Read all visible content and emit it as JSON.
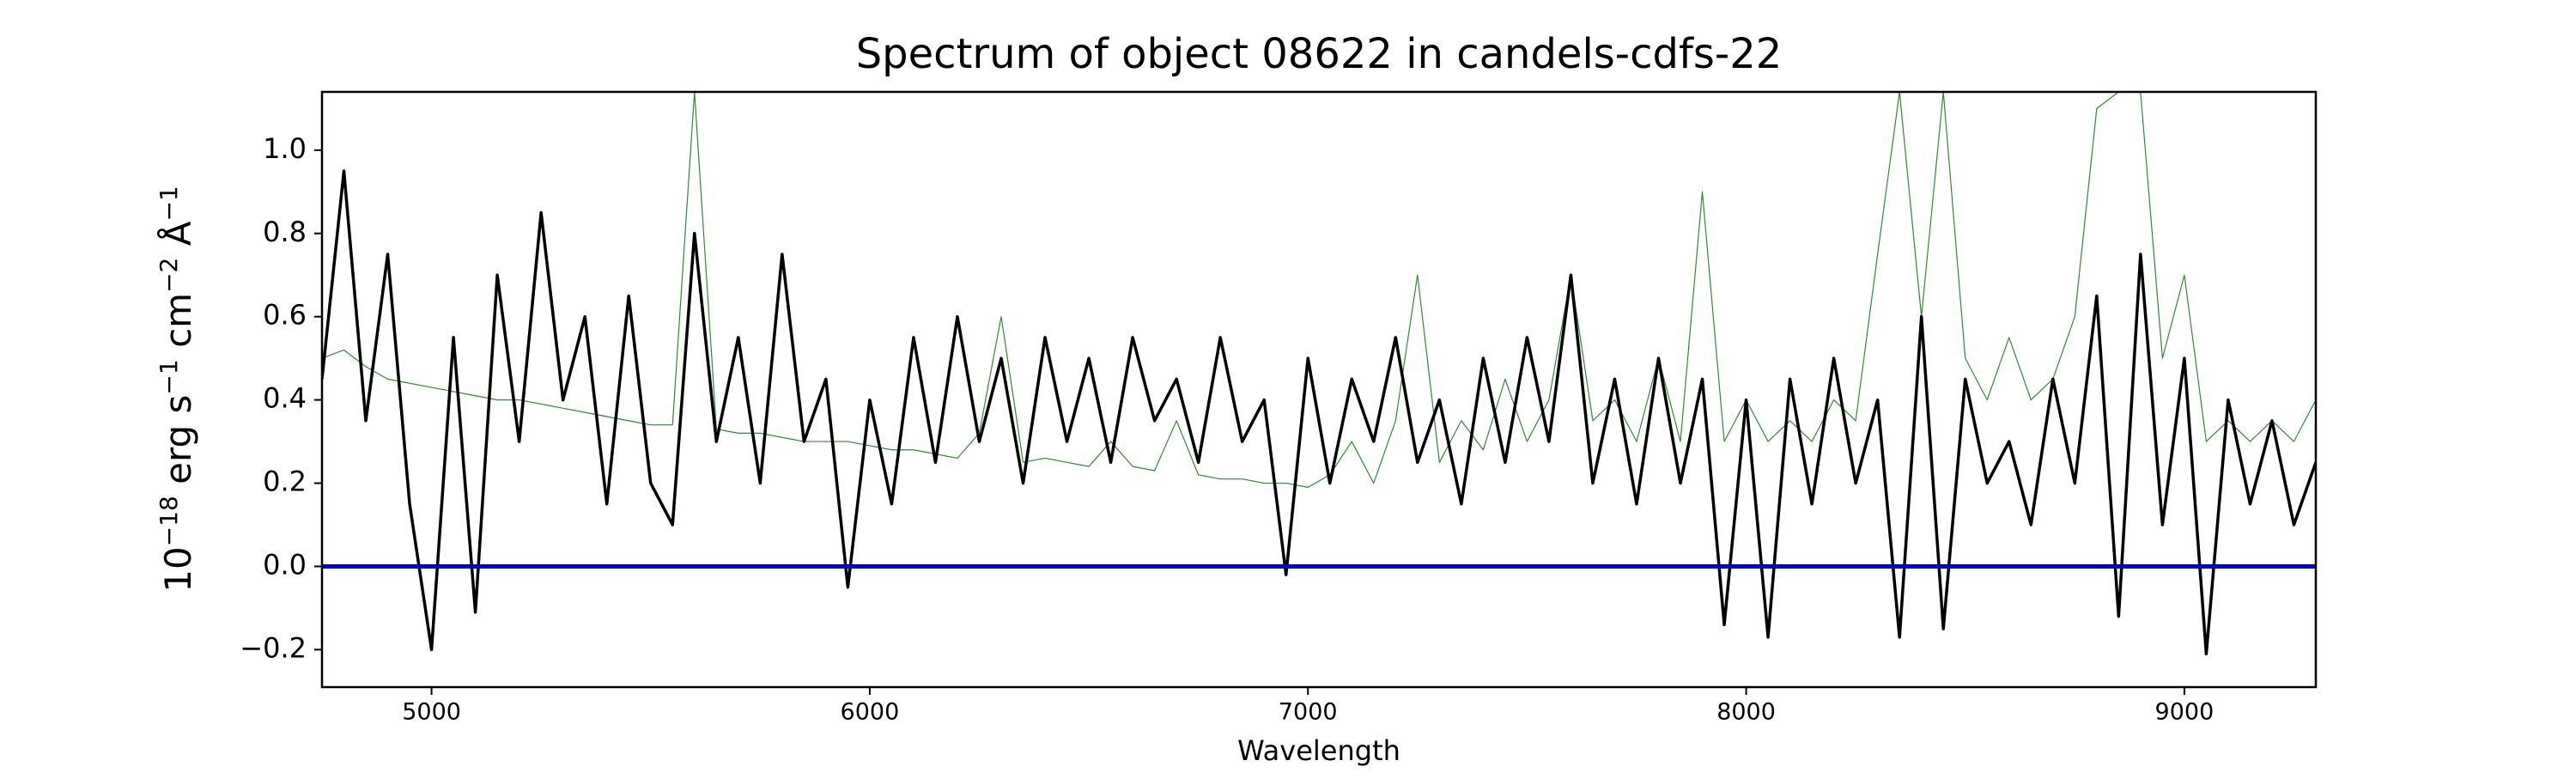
{
  "chart_data": {
    "type": "line",
    "title": "Spectrum of object 08622 in candels-cdfs-22",
    "xlabel": "Wavelength",
    "ylabel_parts": [
      "10",
      "−18",
      " erg s",
      "−1",
      " cm",
      "−2",
      " Å",
      "−1"
    ],
    "x": [
      4750,
      4800,
      4850,
      4900,
      4950,
      5000,
      5050,
      5100,
      5150,
      5200,
      5250,
      5300,
      5350,
      5400,
      5450,
      5500,
      5550,
      5600,
      5650,
      5700,
      5750,
      5800,
      5850,
      5900,
      5950,
      6000,
      6050,
      6100,
      6150,
      6200,
      6250,
      6300,
      6350,
      6400,
      6450,
      6500,
      6550,
      6600,
      6650,
      6700,
      6750,
      6800,
      6850,
      6900,
      6950,
      7000,
      7050,
      7100,
      7150,
      7200,
      7250,
      7300,
      7350,
      7400,
      7450,
      7500,
      7550,
      7600,
      7650,
      7700,
      7750,
      7800,
      7850,
      7900,
      7950,
      8000,
      8050,
      8100,
      8150,
      8200,
      8250,
      8300,
      8350,
      8400,
      8450,
      8500,
      8550,
      8600,
      8650,
      8700,
      8750,
      8800,
      8850,
      8900,
      8950,
      9000,
      9050,
      9100,
      9150,
      9200,
      9250,
      9300
    ],
    "series": [
      {
        "color": "#2e8b2e",
        "width": 1.2,
        "values": [
          0.5,
          0.52,
          0.48,
          0.45,
          0.44,
          0.43,
          0.42,
          0.41,
          0.4,
          0.4,
          0.39,
          0.38,
          0.37,
          0.36,
          0.35,
          0.34,
          0.34,
          1.14,
          0.33,
          0.32,
          0.32,
          0.31,
          0.3,
          0.3,
          0.3,
          0.29,
          0.28,
          0.28,
          0.27,
          0.26,
          0.32,
          0.6,
          0.25,
          0.26,
          0.25,
          0.24,
          0.3,
          0.24,
          0.23,
          0.35,
          0.22,
          0.21,
          0.21,
          0.2,
          0.2,
          0.19,
          0.22,
          0.3,
          0.2,
          0.35,
          0.7,
          0.25,
          0.35,
          0.28,
          0.45,
          0.3,
          0.4,
          0.7,
          0.35,
          0.4,
          0.3,
          0.5,
          0.3,
          0.9,
          0.3,
          0.4,
          0.3,
          0.35,
          0.3,
          0.4,
          0.35,
          0.75,
          1.14,
          0.6,
          1.14,
          0.5,
          0.4,
          0.55,
          0.4,
          0.45,
          0.6,
          1.1,
          1.14,
          1.14,
          0.5,
          0.7,
          0.3,
          0.35,
          0.3,
          0.35,
          0.3,
          0.4
        ]
      },
      {
        "color": "#000000",
        "width": 3.5,
        "values": [
          0.45,
          0.95,
          0.35,
          0.75,
          0.15,
          -0.2,
          0.55,
          -0.11,
          0.7,
          0.3,
          0.85,
          0.4,
          0.6,
          0.15,
          0.65,
          0.2,
          0.1,
          0.8,
          0.3,
          0.55,
          0.2,
          0.75,
          0.3,
          0.45,
          -0.05,
          0.4,
          0.15,
          0.55,
          0.25,
          0.6,
          0.3,
          0.5,
          0.2,
          0.55,
          0.3,
          0.5,
          0.25,
          0.55,
          0.35,
          0.45,
          0.25,
          0.55,
          0.3,
          0.4,
          -0.02,
          0.5,
          0.2,
          0.45,
          0.3,
          0.55,
          0.25,
          0.4,
          0.15,
          0.5,
          0.25,
          0.55,
          0.3,
          0.7,
          0.2,
          0.45,
          0.15,
          0.5,
          0.2,
          0.45,
          -0.14,
          0.4,
          -0.17,
          0.45,
          0.15,
          0.5,
          0.2,
          0.4,
          -0.17,
          0.6,
          -0.15,
          0.45,
          0.2,
          0.3,
          0.1,
          0.45,
          0.2,
          0.65,
          -0.12,
          0.75,
          0.1,
          0.5,
          -0.21,
          0.4,
          0.15,
          0.35,
          0.1,
          0.25
        ]
      }
    ],
    "hline": {
      "value": 0,
      "color": "#0000cc"
    },
    "xlim": [
      4750,
      9300
    ],
    "ylim": [
      -0.29,
      1.14
    ],
    "xticks": [
      5000,
      6000,
      7000,
      8000,
      9000
    ],
    "yticks": [
      {
        "value": -0.2,
        "label": "−0.2"
      },
      {
        "value": 0,
        "label": "0.0"
      },
      {
        "value": 0.2,
        "label": "0.2"
      },
      {
        "value": 0.4,
        "label": "0.4"
      },
      {
        "value": 0.6,
        "label": "0.6"
      },
      {
        "value": 0.8,
        "label": "0.8"
      },
      {
        "value": 1.0,
        "label": "1.0"
      }
    ],
    "grid": false
  }
}
